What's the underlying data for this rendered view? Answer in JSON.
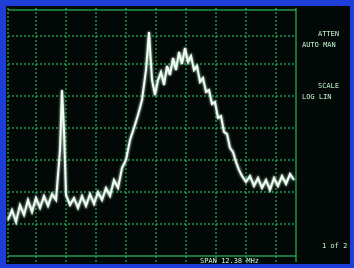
{
  "screen": {
    "softkeys": [
      "ATTEN",
      "AUTO MAN",
      "SCALE",
      "LOG LIN"
    ],
    "span": "SPAN 12.38 MHz",
    "page": "1 of 2"
  }
}
